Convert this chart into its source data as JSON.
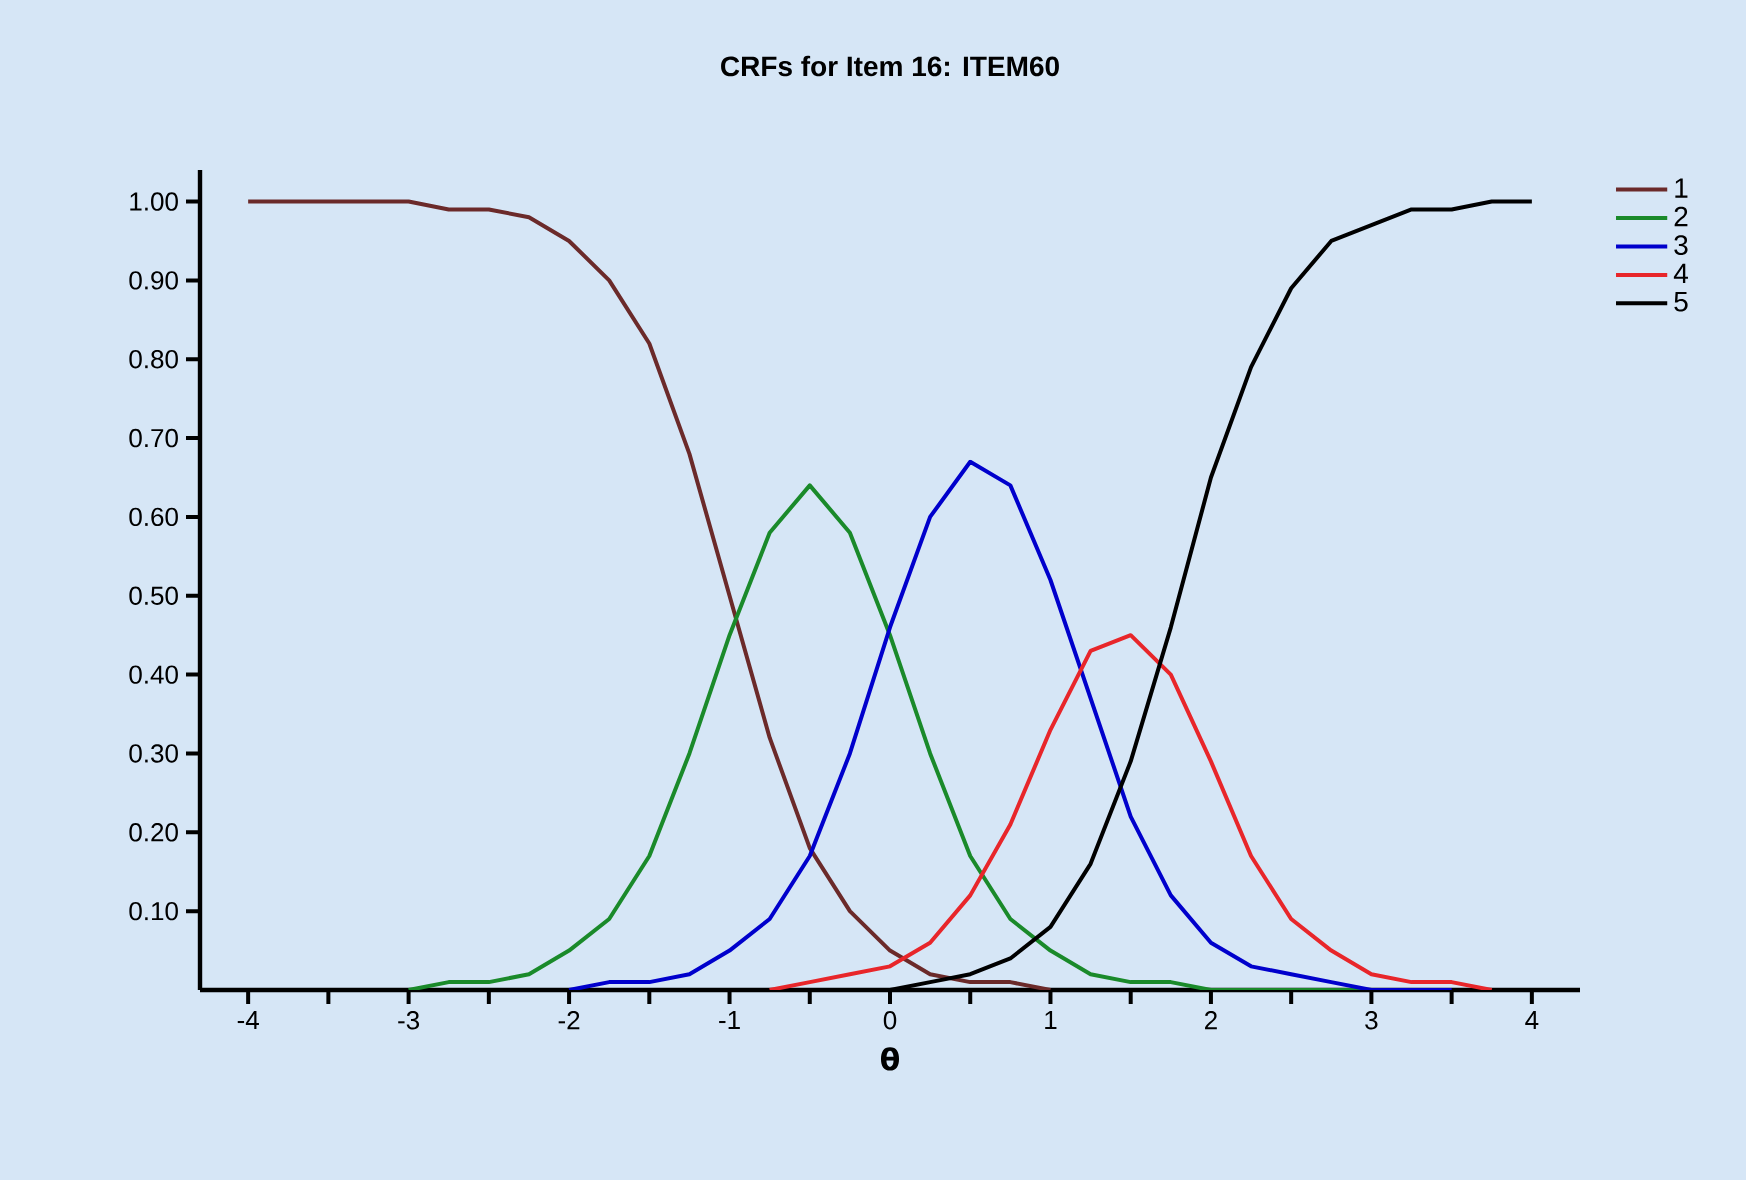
{
  "chart_data": {
    "type": "line",
    "title": "CRFs for Item 16: ITEM60",
    "xlabel": "θ",
    "legend": "top right",
    "xlim": [
      -4.3,
      4.3
    ],
    "ylim": [
      0,
      1.04
    ],
    "xticks": [
      -4,
      {
        "value": -3.5,
        "label": null
      },
      -3,
      {
        "value": -2.5,
        "label": null
      },
      -2,
      {
        "value": -1.5,
        "label": null
      },
      -1,
      {
        "value": -0.5,
        "label": null
      },
      0,
      {
        "value": 0.5,
        "label": null
      },
      1,
      {
        "value": 1.5,
        "label": null
      },
      2,
      {
        "value": 2.5,
        "label": null
      },
      3,
      {
        "value": 3.5,
        "label": null
      },
      4
    ],
    "yticks": [
      {
        "value": 0.1,
        "label": "0.10"
      },
      {
        "value": 0.2,
        "label": "0.20"
      },
      {
        "value": 0.3,
        "label": "0.30"
      },
      {
        "value": 0.4,
        "label": "0.40"
      },
      {
        "value": 0.5,
        "label": "0.50"
      },
      {
        "value": 0.6,
        "label": "0.60"
      },
      {
        "value": 0.7,
        "label": "0.70"
      },
      {
        "value": 0.8,
        "label": "0.80"
      },
      {
        "value": 0.9,
        "label": "0.90"
      },
      {
        "value": 1.0,
        "label": "1.00"
      }
    ],
    "series": [
      {
        "name": "1",
        "color": "#6b2a2a",
        "x": [
          -4,
          -3.75,
          -3.5,
          -3.25,
          -3,
          -2.75,
          -2.5,
          -2.25,
          -2,
          -1.75,
          -1.5,
          -1.25,
          -1,
          -0.75,
          -0.5,
          -0.25,
          0,
          0.25,
          0.5,
          0.75,
          1
        ],
        "values": [
          1.0,
          1.0,
          1.0,
          1.0,
          1.0,
          0.99,
          0.99,
          0.98,
          0.95,
          0.9,
          0.82,
          0.68,
          0.5,
          0.32,
          0.18,
          0.1,
          0.05,
          0.02,
          0.01,
          0.01,
          0.0
        ]
      },
      {
        "name": "2",
        "color": "#1a8a2a",
        "x": [
          -3,
          -2.75,
          -2.5,
          -2.25,
          -2,
          -1.75,
          -1.5,
          -1.25,
          -1,
          -0.75,
          -0.5,
          -0.25,
          0,
          0.25,
          0.5,
          0.75,
          1,
          1.25,
          1.5,
          1.75,
          2,
          2.25,
          2.5,
          2.75,
          3
        ],
        "values": [
          0.0,
          0.01,
          0.01,
          0.02,
          0.05,
          0.09,
          0.17,
          0.3,
          0.45,
          0.58,
          0.64,
          0.58,
          0.45,
          0.3,
          0.17,
          0.09,
          0.05,
          0.02,
          0.01,
          0.01,
          0.0,
          0.0,
          0.0,
          0.0,
          0.0
        ]
      },
      {
        "name": "3",
        "color": "#0000cc",
        "x": [
          -2,
          -1.75,
          -1.5,
          -1.25,
          -1,
          -0.75,
          -0.5,
          -0.25,
          0,
          0.25,
          0.5,
          0.75,
          1,
          1.25,
          1.5,
          1.75,
          2,
          2.25,
          2.5,
          2.75,
          3,
          3.25,
          3.5
        ],
        "values": [
          0.0,
          0.01,
          0.01,
          0.02,
          0.05,
          0.09,
          0.17,
          0.3,
          0.46,
          0.6,
          0.67,
          0.64,
          0.52,
          0.37,
          0.22,
          0.12,
          0.06,
          0.03,
          0.02,
          0.01,
          0.0,
          0.0,
          0.0
        ]
      },
      {
        "name": "4",
        "color": "#e8262a",
        "x": [
          -0.75,
          -0.5,
          -0.25,
          0,
          0.25,
          0.5,
          0.75,
          1,
          1.25,
          1.5,
          1.75,
          2,
          2.25,
          2.5,
          2.75,
          3,
          3.25,
          3.5,
          3.75
        ],
        "values": [
          0.0,
          0.01,
          0.02,
          0.03,
          0.06,
          0.12,
          0.21,
          0.33,
          0.43,
          0.45,
          0.4,
          0.29,
          0.17,
          0.09,
          0.05,
          0.02,
          0.01,
          0.01,
          0.0
        ]
      },
      {
        "name": "5",
        "color": "#000000",
        "x": [
          0,
          0.25,
          0.5,
          0.75,
          1,
          1.25,
          1.5,
          1.75,
          2,
          2.25,
          2.5,
          2.75,
          3,
          3.25,
          3.5,
          3.75,
          4
        ],
        "values": [
          0.0,
          0.01,
          0.02,
          0.04,
          0.08,
          0.16,
          0.29,
          0.46,
          0.65,
          0.79,
          0.89,
          0.95,
          0.97,
          0.99,
          0.99,
          1.0,
          1.0
        ]
      }
    ]
  }
}
